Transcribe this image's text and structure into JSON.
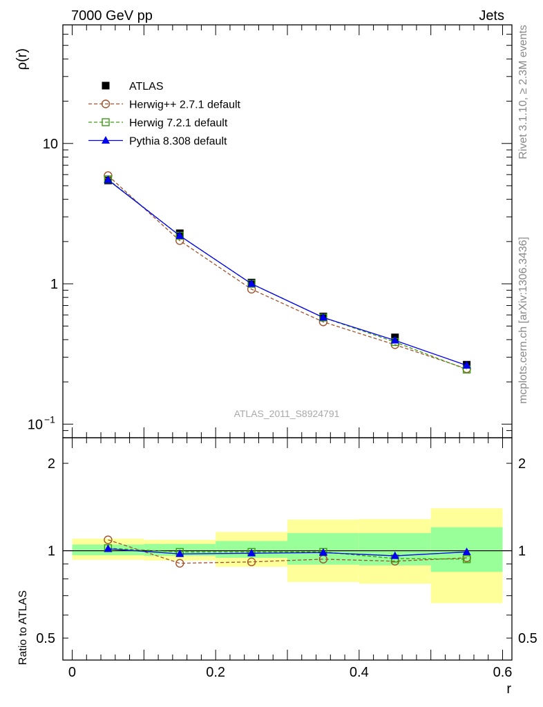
{
  "header": {
    "left": "7000 GeV pp",
    "right": "Jets"
  },
  "side": {
    "rivet": "Rivet 3.1.10, ≥ 2.3M events",
    "mcplots": "mcplots.cern.ch [arXiv:1306.3436]"
  },
  "watermark": "ATLAS_2011_S8924791",
  "colors": {
    "herwigpp": "#a0522d",
    "herwig7": "#3c9b14",
    "pythia": "#0000ee",
    "band_inner": "#99ff99",
    "band_outer": "#ffff99"
  },
  "chart_data": [
    {
      "type": "line",
      "panel": "main",
      "ylabel": "ρ(r)",
      "yscale": "log",
      "ylim": [
        0.08,
        70
      ],
      "xlim": [
        -0.013,
        0.613
      ],
      "y_ticks": [
        {
          "v": 10,
          "label": "10"
        },
        {
          "v": 1,
          "label": "1"
        },
        {
          "v": 0.1,
          "label": "10",
          "sup": "−1"
        }
      ],
      "x": [
        0.05,
        0.15,
        0.25,
        0.35,
        0.45,
        0.55
      ],
      "legend": [
        "ATLAS",
        "Herwig++ 2.7.1 default",
        "Herwig 7.2.1 default",
        "Pythia 8.308 default"
      ],
      "series": [
        {
          "name": "ATLAS",
          "key": "atlas",
          "values": [
            5.45,
            2.29,
            1.02,
            0.585,
            0.415,
            0.265
          ]
        },
        {
          "name": "Herwig++ 2.7.1 default",
          "key": "herwigpp",
          "values": [
            5.9,
            2.03,
            0.915,
            0.535,
            0.368,
            0.248
          ]
        },
        {
          "name": "Herwig 7.2.1 default",
          "key": "herwig7",
          "values": [
            5.55,
            2.2,
            1.0,
            0.575,
            0.385,
            0.245
          ]
        },
        {
          "name": "Pythia 8.308 default",
          "key": "pythia",
          "values": [
            5.5,
            2.2,
            1.0,
            0.575,
            0.395,
            0.262
          ]
        }
      ]
    },
    {
      "type": "line",
      "panel": "ratio",
      "ylabel": "Ratio to ATLAS",
      "xlabel": "r",
      "yscale": "log",
      "ylim": [
        0.42,
        2.45
      ],
      "xlim": [
        -0.013,
        0.613
      ],
      "y_ticks": [
        {
          "v": 2,
          "label": "2"
        },
        {
          "v": 1,
          "label": "1"
        },
        {
          "v": 0.5,
          "label": "0.5"
        }
      ],
      "x_ticks": [
        {
          "v": 0,
          "label": "0"
        },
        {
          "v": 0.2,
          "label": "0.2"
        },
        {
          "v": 0.4,
          "label": "0.4"
        },
        {
          "v": 0.6,
          "label": "0.6"
        }
      ],
      "x": [
        0.05,
        0.15,
        0.25,
        0.35,
        0.45,
        0.55
      ],
      "bands": [
        {
          "x0": 0.0,
          "x1": 0.1,
          "inner": [
            0.965,
            1.05
          ],
          "outer": [
            0.93,
            1.1
          ]
        },
        {
          "x0": 0.1,
          "x1": 0.2,
          "inner": [
            0.96,
            1.055
          ],
          "outer": [
            0.925,
            1.09
          ]
        },
        {
          "x0": 0.2,
          "x1": 0.3,
          "inner": [
            0.945,
            1.08
          ],
          "outer": [
            0.88,
            1.16
          ]
        },
        {
          "x0": 0.3,
          "x1": 0.4,
          "inner": [
            0.895,
            1.15
          ],
          "outer": [
            0.78,
            1.28
          ]
        },
        {
          "x0": 0.4,
          "x1": 0.5,
          "inner": [
            0.89,
            1.15
          ],
          "outer": [
            0.77,
            1.285
          ]
        },
        {
          "x0": 0.5,
          "x1": 0.6,
          "inner": [
            0.845,
            1.205
          ],
          "outer": [
            0.66,
            1.4
          ]
        }
      ],
      "series": [
        {
          "name": "Herwig++ 2.7.1 default",
          "key": "herwigpp",
          "values": [
            1.09,
            0.905,
            0.915,
            0.935,
            0.92,
            0.945
          ]
        },
        {
          "name": "Herwig 7.2.1 default",
          "key": "herwig7",
          "values": [
            1.02,
            0.99,
            0.99,
            0.99,
            0.94,
            0.935
          ]
        },
        {
          "name": "Pythia 8.308 default",
          "key": "pythia",
          "values": [
            1.015,
            0.975,
            0.98,
            0.985,
            0.96,
            0.99
          ]
        }
      ]
    }
  ]
}
